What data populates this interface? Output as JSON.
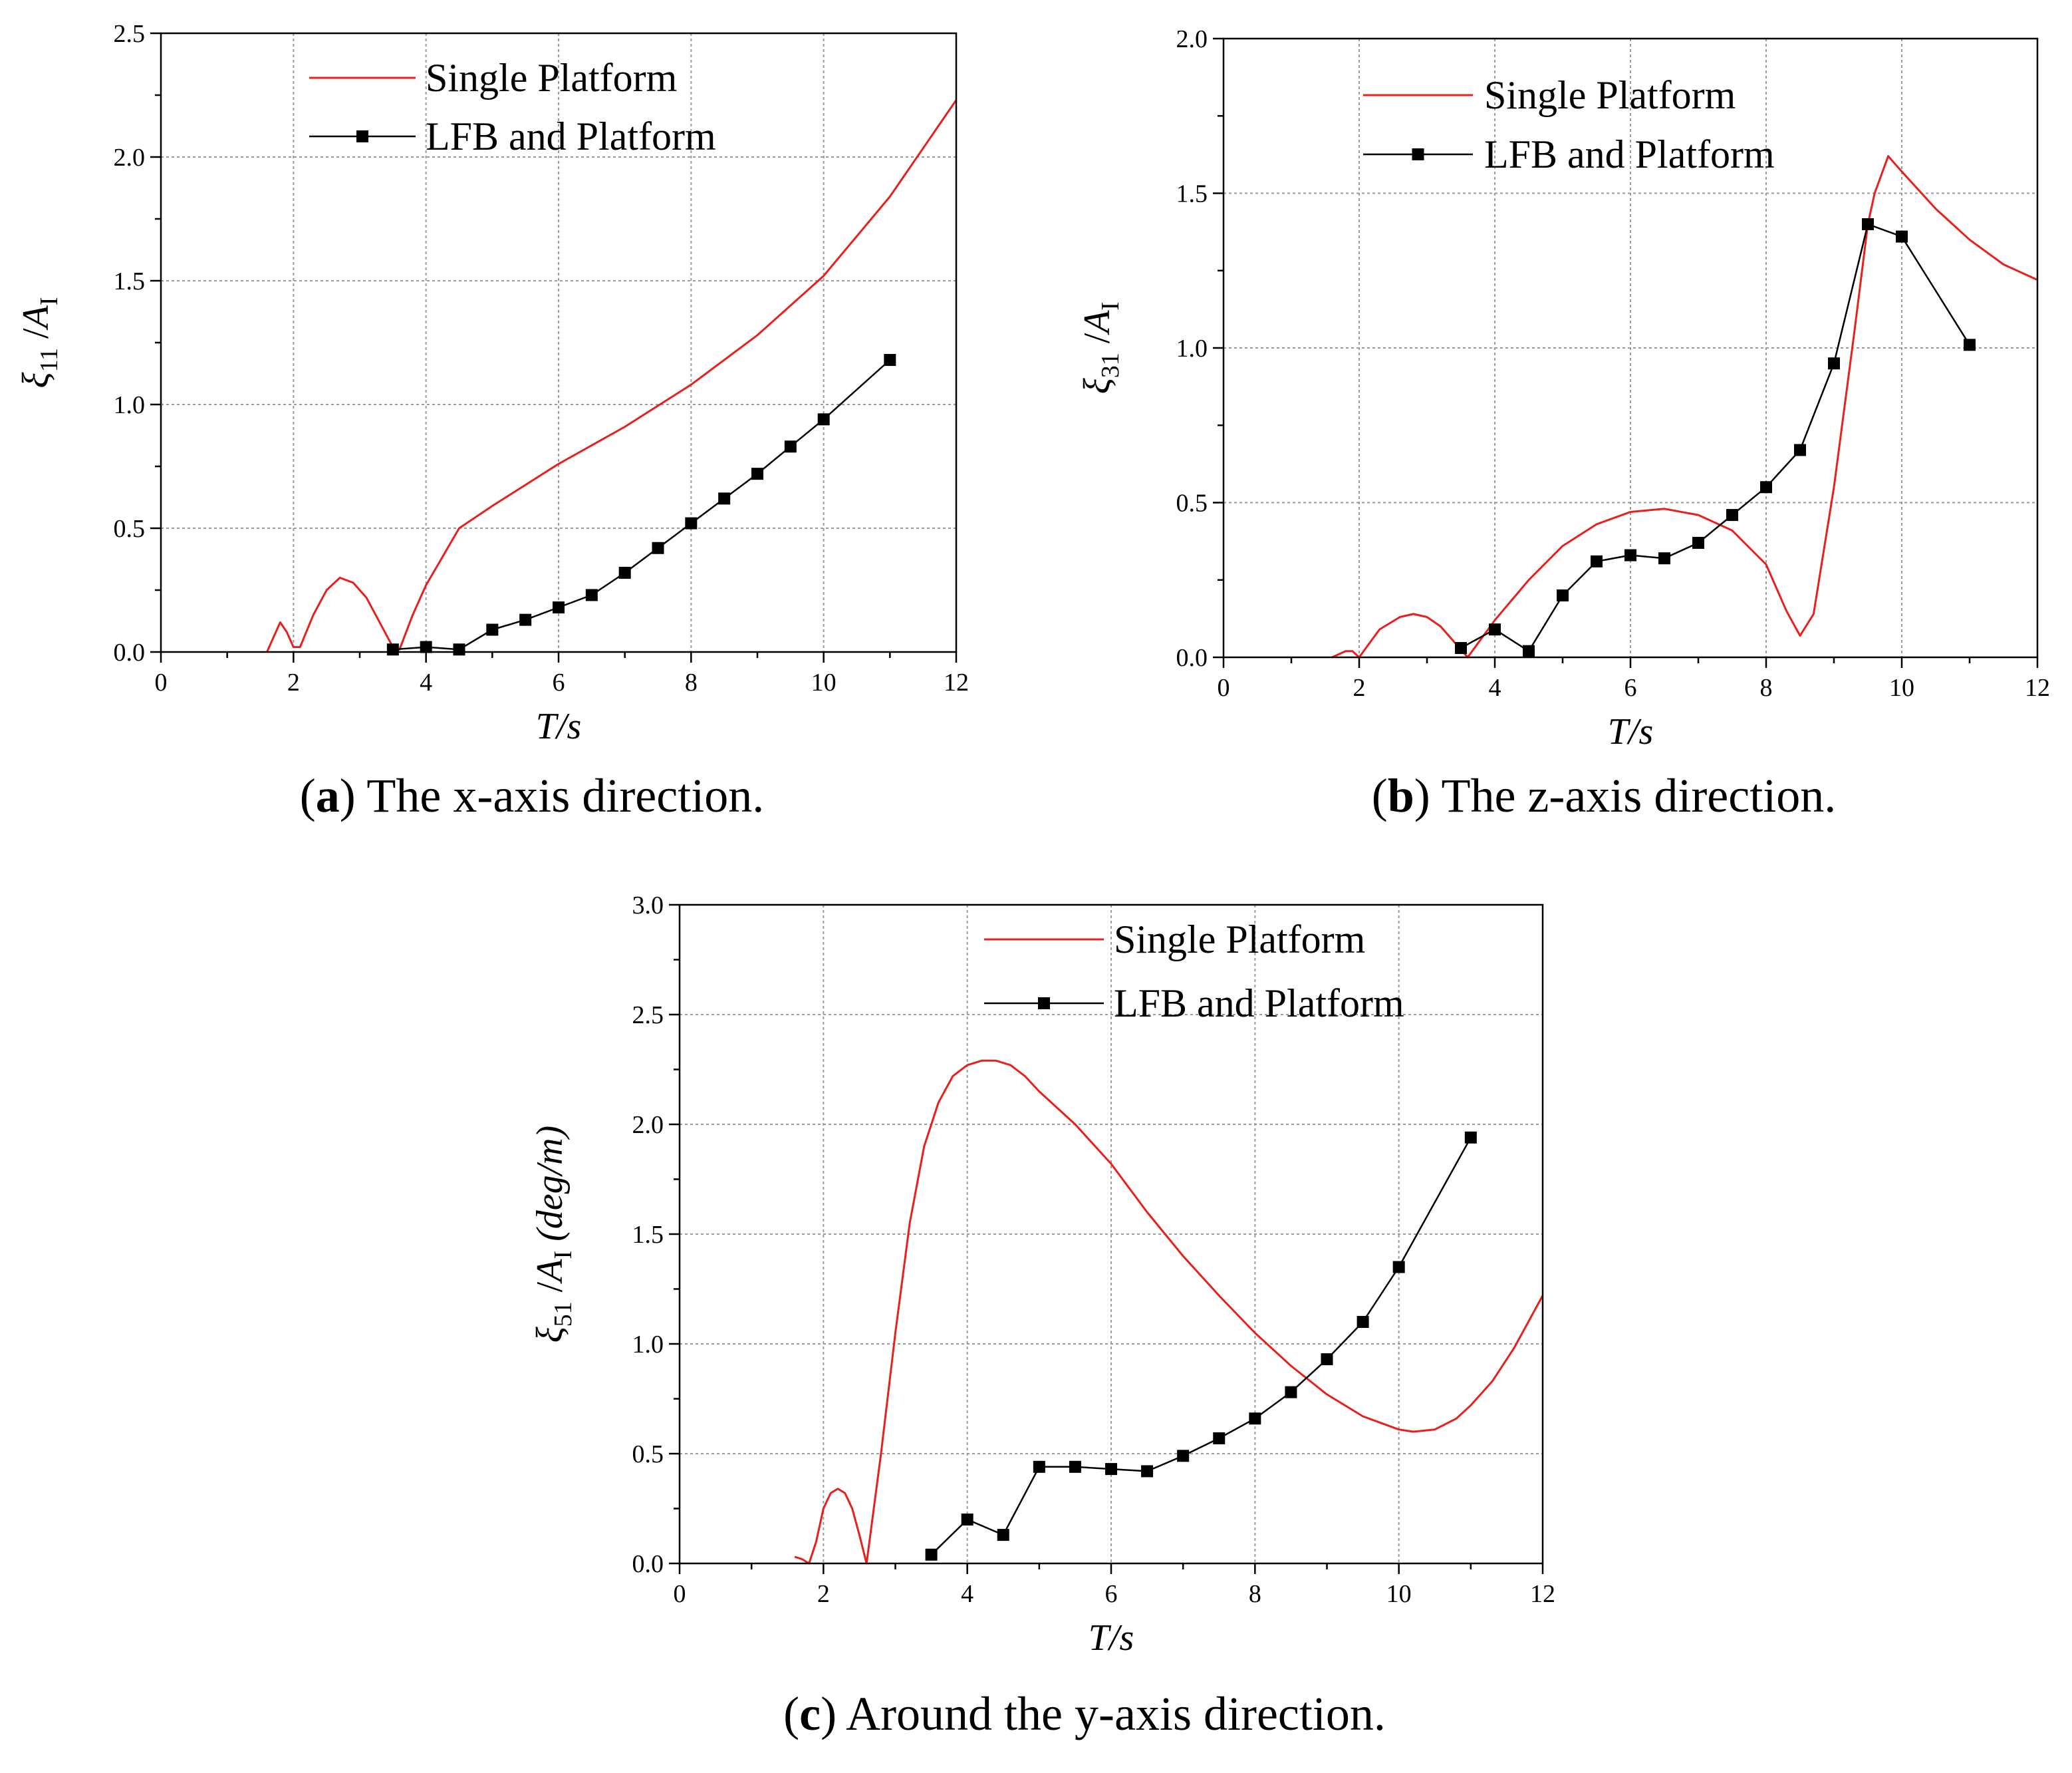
{
  "colors": {
    "single_platform": "#e8201c",
    "lfb_and_platform": "#000000",
    "grid": "#9a9a9a"
  },
  "chart_data": [
    {
      "id": "a",
      "type": "line",
      "caption": {
        "letter": "a",
        "text": " The x-axis direction."
      },
      "xlabel": "T/s",
      "ylabel": {
        "symbol": "ξ",
        "sub": "11",
        "mid": " /",
        "var": "A",
        "var_sub": "I",
        "unit": ""
      },
      "xlim": [
        0,
        12
      ],
      "ylim": [
        0,
        2.5
      ],
      "xticks": [
        0,
        2,
        4,
        6,
        8,
        10,
        12
      ],
      "yticks": [
        0.0,
        0.5,
        1.0,
        1.5,
        2.0,
        2.5
      ],
      "legend": {
        "position": "top-center",
        "entries": [
          "Single Platform",
          "LFB and Platform"
        ]
      },
      "series": [
        {
          "name": "Single Platform",
          "marker": "none",
          "x": [
            1.6,
            1.7,
            1.8,
            1.9,
            2.0,
            2.1,
            2.3,
            2.5,
            2.7,
            2.9,
            3.1,
            3.3,
            3.5,
            3.6,
            3.8,
            4.0,
            4.5,
            5.0,
            6.0,
            7.0,
            8.0,
            9.0,
            10.0,
            11.0,
            12.0
          ],
          "y": [
            0.0,
            0.06,
            0.12,
            0.08,
            0.02,
            0.02,
            0.15,
            0.25,
            0.3,
            0.28,
            0.22,
            0.12,
            0.02,
            0.01,
            0.15,
            0.27,
            0.5,
            0.59,
            0.76,
            0.91,
            1.08,
            1.28,
            1.52,
            1.84,
            2.23
          ]
        },
        {
          "name": "LFB and Platform",
          "marker": "square",
          "x": [
            3.5,
            4.0,
            4.5,
            5.0,
            5.5,
            6.0,
            6.5,
            7.0,
            7.5,
            8.0,
            8.5,
            9.0,
            9.5,
            10.0,
            11.0
          ],
          "y": [
            0.01,
            0.02,
            0.01,
            0.09,
            0.13,
            0.18,
            0.23,
            0.32,
            0.42,
            0.52,
            0.62,
            0.72,
            0.83,
            0.94,
            1.18
          ]
        }
      ]
    },
    {
      "id": "b",
      "type": "line",
      "caption": {
        "letter": "b",
        "text": " The z-axis direction."
      },
      "xlabel": "T/s",
      "ylabel": {
        "symbol": "ξ",
        "sub": "31",
        "mid": " /",
        "var": "A",
        "var_sub": "I",
        "unit": ""
      },
      "xlim": [
        0,
        12
      ],
      "ylim": [
        0,
        2.0
      ],
      "xticks": [
        0,
        2,
        4,
        6,
        8,
        10,
        12
      ],
      "yticks": [
        0.0,
        0.5,
        1.0,
        1.5,
        2.0
      ],
      "legend": {
        "position": "top-center",
        "entries": [
          "Single Platform",
          "LFB and Platform"
        ]
      },
      "series": [
        {
          "name": "Single Platform",
          "marker": "none",
          "x": [
            1.6,
            1.8,
            1.9,
            2.0,
            2.1,
            2.3,
            2.6,
            2.8,
            3.0,
            3.2,
            3.4,
            3.6,
            4.0,
            4.5,
            5.0,
            5.5,
            6.0,
            6.5,
            7.0,
            7.5,
            8.0,
            8.3,
            8.5,
            8.7,
            9.0,
            9.3,
            9.5,
            9.6,
            9.8,
            10.0,
            10.5,
            11.0,
            11.5,
            12.0
          ],
          "y": [
            0.0,
            0.02,
            0.02,
            0.0,
            0.03,
            0.09,
            0.13,
            0.14,
            0.13,
            0.1,
            0.05,
            0.0,
            0.12,
            0.25,
            0.36,
            0.43,
            0.47,
            0.48,
            0.46,
            0.41,
            0.3,
            0.15,
            0.07,
            0.14,
            0.55,
            1.05,
            1.4,
            1.5,
            1.62,
            1.57,
            1.45,
            1.35,
            1.27,
            1.22
          ]
        },
        {
          "name": "LFB and Platform",
          "marker": "square",
          "x": [
            3.5,
            4.0,
            4.5,
            5.0,
            5.5,
            6.0,
            6.5,
            7.0,
            7.5,
            8.0,
            8.5,
            9.0,
            9.5,
            10.0,
            11.0
          ],
          "y": [
            0.03,
            0.09,
            0.02,
            0.2,
            0.31,
            0.33,
            0.32,
            0.37,
            0.46,
            0.55,
            0.67,
            0.95,
            1.4,
            1.36,
            1.01
          ]
        }
      ]
    },
    {
      "id": "c",
      "type": "line",
      "caption": {
        "letter": "c",
        "text": " Around the y-axis direction."
      },
      "xlabel": "T/s",
      "ylabel": {
        "symbol": "ξ",
        "sub": "51",
        "mid": " /",
        "var": "A",
        "var_sub": "I",
        "unit": "  (deg/m)"
      },
      "xlim": [
        0,
        12
      ],
      "ylim": [
        0,
        3.0
      ],
      "xticks": [
        0,
        2,
        4,
        6,
        8,
        10,
        12
      ],
      "yticks": [
        0.0,
        0.5,
        1.0,
        1.5,
        2.0,
        2.5,
        3.0
      ],
      "legend": {
        "position": "top-right",
        "entries": [
          "Single Platform",
          "LFB and Platform"
        ]
      },
      "series": [
        {
          "name": "Single Platform",
          "marker": "none",
          "x": [
            1.6,
            1.7,
            1.8,
            1.9,
            2.0,
            2.1,
            2.2,
            2.3,
            2.4,
            2.5,
            2.6,
            2.8,
            3.0,
            3.2,
            3.4,
            3.6,
            3.8,
            4.0,
            4.2,
            4.4,
            4.6,
            4.8,
            5.0,
            5.5,
            6.0,
            6.5,
            7.0,
            7.5,
            8.0,
            8.5,
            9.0,
            9.5,
            10.0,
            10.2,
            10.5,
            10.8,
            11.0,
            11.3,
            11.6,
            12.0
          ],
          "y": [
            0.03,
            0.02,
            0.0,
            0.1,
            0.25,
            0.32,
            0.34,
            0.32,
            0.25,
            0.13,
            0.0,
            0.5,
            1.05,
            1.55,
            1.9,
            2.1,
            2.22,
            2.27,
            2.29,
            2.29,
            2.27,
            2.22,
            2.15,
            2.0,
            1.82,
            1.6,
            1.4,
            1.22,
            1.05,
            0.9,
            0.77,
            0.67,
            0.61,
            0.6,
            0.61,
            0.66,
            0.72,
            0.83,
            0.98,
            1.22
          ]
        },
        {
          "name": "LFB and Platform",
          "marker": "square",
          "x": [
            3.5,
            4.0,
            4.5,
            5.0,
            5.5,
            6.0,
            6.5,
            7.0,
            7.5,
            8.0,
            8.5,
            9.0,
            9.5,
            10.0,
            11.0
          ],
          "y": [
            0.04,
            0.2,
            0.13,
            0.44,
            0.44,
            0.43,
            0.42,
            0.49,
            0.57,
            0.66,
            0.78,
            0.93,
            1.1,
            1.35,
            1.94
          ]
        }
      ]
    }
  ]
}
